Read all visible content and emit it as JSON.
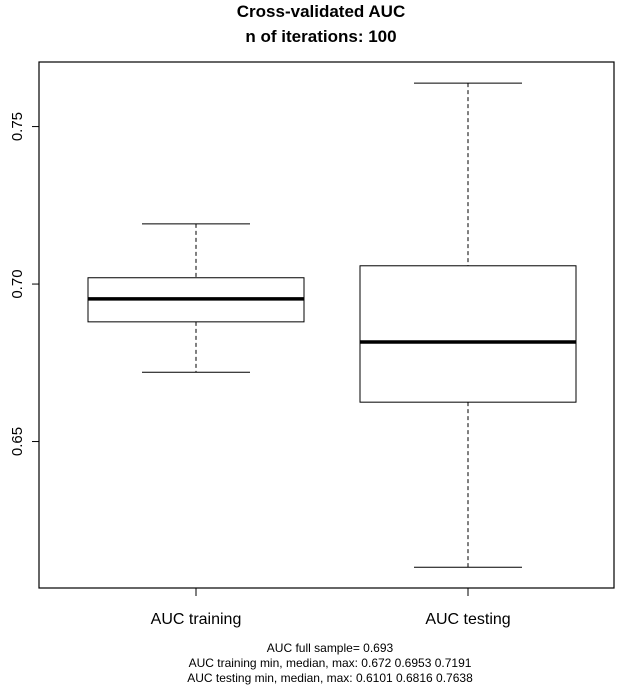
{
  "chart_data": {
    "type": "box",
    "title": "Cross-validated AUC",
    "subtitle": "n of iterations: 100",
    "categories": [
      "AUC training",
      "AUC testing"
    ],
    "yticks": [
      0.65,
      0.7,
      0.75
    ],
    "ytick_labels": [
      "0.65",
      "0.70",
      "0.75"
    ],
    "ylim": [
      0.6035,
      0.7705
    ],
    "boxes": [
      {
        "name": "AUC training",
        "min": 0.672,
        "q1": 0.688,
        "median": 0.6953,
        "q3": 0.702,
        "max": 0.7191
      },
      {
        "name": "AUC testing",
        "min": 0.6101,
        "q1": 0.6625,
        "median": 0.6816,
        "q3": 0.7058,
        "max": 0.7638
      }
    ],
    "grid": false,
    "legend": "none"
  },
  "footer": {
    "line1": "AUC full sample= 0.693",
    "line2": "AUC training min, median, max: 0.672 0.6953 0.7191",
    "line3": "AUC testing min, median, max: 0.6101 0.6816 0.7638"
  }
}
